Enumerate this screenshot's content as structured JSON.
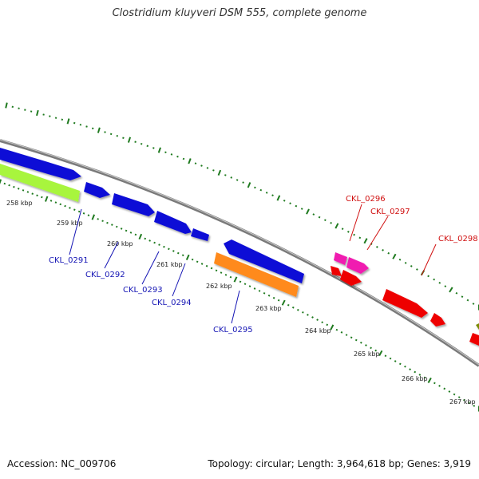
{
  "title": "Clostridium kluyveri DSM 555, complete genome",
  "footer": {
    "accession": "Accession: NC_009706",
    "summary": "Topology: circular; Length: 3,964,618 bp; Genes: 3,919"
  },
  "colors": {
    "backbone": "#8a8a8a",
    "tick": "#1f7a1f",
    "blue_gene": "#0f0fd6",
    "blue_label": "#1414b4",
    "red_gene": "#ee0000",
    "red_label": "#d01010",
    "magenta_gene": "#f01bb0",
    "orange_gene": "#ff8a1a",
    "lime_gene": "#a8f53c"
  },
  "position_labels": [
    "258 kbp",
    "259 kbp",
    "260 kbp",
    "261 kbp",
    "262 kbp",
    "263 kbp",
    "264 kbp",
    "265 kbp",
    "266 kbp",
    "267 kbp"
  ],
  "gene_labels": [
    {
      "text": "CKL_0291",
      "strand": "forward",
      "color": "blue"
    },
    {
      "text": "CKL_0292",
      "strand": "forward",
      "color": "blue"
    },
    {
      "text": "CKL_0293",
      "strand": "forward",
      "color": "blue"
    },
    {
      "text": "CKL_0294",
      "strand": "forward",
      "color": "blue"
    },
    {
      "text": "CKL_0295",
      "strand": "forward",
      "color": "blue"
    },
    {
      "text": "CKL_0296",
      "strand": "reverse",
      "color": "red"
    },
    {
      "text": "CKL_0297",
      "strand": "reverse",
      "color": "red"
    },
    {
      "text": "CKL_0298",
      "strand": "reverse",
      "color": "red"
    }
  ]
}
